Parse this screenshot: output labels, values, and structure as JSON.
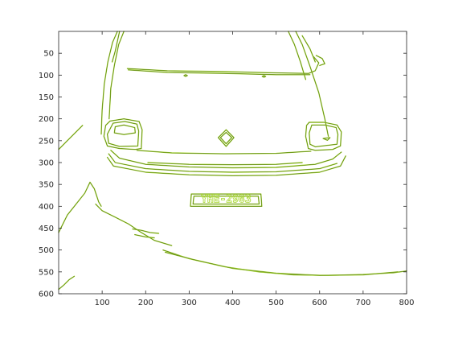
{
  "chart_data": {
    "type": "image",
    "title": "",
    "xlabel": "",
    "ylabel": "",
    "xlim": [
      0,
      800
    ],
    "ylim": [
      600,
      0
    ],
    "x_ticks": [
      100,
      200,
      300,
      400,
      500,
      600,
      700,
      800
    ],
    "y_ticks": [
      50,
      100,
      150,
      200,
      250,
      300,
      350,
      400,
      450,
      500,
      550,
      600
    ],
    "y_axis_inverted": true,
    "grid": false,
    "legend": "none",
    "image_text": "YHE-2983",
    "colors": {
      "edge": "#a6d62b",
      "edge_dark": "#4b6e1a",
      "axis": "#262626",
      "background": "#ffffff"
    },
    "edge_paths": [
      {
        "name": "hood-left",
        "points": [
          [
            135,
            0
          ],
          [
            124,
            25
          ],
          [
            113,
            70
          ],
          [
            105,
            120
          ],
          [
            100,
            180
          ],
          [
            98,
            235
          ]
        ]
      },
      {
        "name": "hood-left-inner",
        "points": [
          [
            150,
            0
          ],
          [
            138,
            30
          ],
          [
            128,
            78
          ],
          [
            120,
            130
          ],
          [
            116,
            200
          ]
        ]
      },
      {
        "name": "wiper-left",
        "points": [
          [
            140,
            0
          ],
          [
            130,
            45
          ],
          [
            123,
            70
          ]
        ]
      },
      {
        "name": "hood-right",
        "points": [
          [
            545,
            0
          ],
          [
            560,
            30
          ],
          [
            578,
            80
          ],
          [
            598,
            140
          ],
          [
            612,
            200
          ],
          [
            620,
            240
          ]
        ]
      },
      {
        "name": "hood-right-inner",
        "points": [
          [
            528,
            0
          ],
          [
            542,
            30
          ],
          [
            556,
            70
          ],
          [
            568,
            110
          ]
        ]
      },
      {
        "name": "wiper-right",
        "points": [
          [
            560,
            10
          ],
          [
            578,
            40
          ],
          [
            590,
            70
          ]
        ]
      },
      {
        "name": "windshield-base",
        "points": [
          [
            158,
            85
          ],
          [
            250,
            90
          ],
          [
            380,
            92
          ],
          [
            500,
            95
          ],
          [
            575,
            96
          ],
          [
            590,
            90
          ],
          [
            598,
            72
          ],
          [
            586,
            58
          ]
        ]
      },
      {
        "name": "windshield-base-2",
        "points": [
          [
            160,
            88
          ],
          [
            250,
            94
          ],
          [
            380,
            96
          ],
          [
            500,
            99
          ],
          [
            578,
            99
          ]
        ]
      },
      {
        "name": "mirror-right",
        "points": [
          [
            592,
            55
          ],
          [
            606,
            62
          ],
          [
            612,
            74
          ],
          [
            600,
            78
          ]
        ]
      },
      {
        "name": "left-headlight",
        "points": [
          [
            118,
            205
          ],
          [
            150,
            200
          ],
          [
            185,
            206
          ],
          [
            192,
            225
          ],
          [
            190,
            268
          ],
          [
            176,
            270
          ],
          [
            140,
            268
          ],
          [
            112,
            262
          ],
          [
            104,
            240
          ],
          [
            108,
            215
          ],
          [
            118,
            205
          ]
        ]
      },
      {
        "name": "left-headlight-inner",
        "points": [
          [
            125,
            210
          ],
          [
            152,
            206
          ],
          [
            180,
            212
          ],
          [
            184,
            228
          ],
          [
            182,
            262
          ],
          [
            140,
            263
          ],
          [
            115,
            256
          ],
          [
            112,
            235
          ],
          [
            125,
            210
          ]
        ]
      },
      {
        "name": "left-headlight-ring",
        "points": [
          [
            130,
            218
          ],
          [
            150,
            214
          ],
          [
            175,
            220
          ],
          [
            176,
            232
          ],
          [
            150,
            236
          ],
          [
            128,
            232
          ],
          [
            130,
            218
          ]
        ]
      },
      {
        "name": "right-headlight",
        "points": [
          [
            576,
            208
          ],
          [
            610,
            208
          ],
          [
            640,
            214
          ],
          [
            650,
            230
          ],
          [
            648,
            262
          ],
          [
            630,
            270
          ],
          [
            590,
            272
          ],
          [
            574,
            268
          ],
          [
            568,
            240
          ],
          [
            570,
            215
          ],
          [
            576,
            208
          ]
        ]
      },
      {
        "name": "right-headlight-inner",
        "points": [
          [
            582,
            214
          ],
          [
            612,
            214
          ],
          [
            638,
            220
          ],
          [
            642,
            236
          ],
          [
            640,
            258
          ],
          [
            590,
            264
          ],
          [
            578,
            258
          ],
          [
            576,
            232
          ],
          [
            582,
            214
          ]
        ]
      },
      {
        "name": "logo-diamond",
        "points": [
          [
            385,
            225
          ],
          [
            403,
            243
          ],
          [
            385,
            263
          ],
          [
            367,
            243
          ],
          [
            385,
            225
          ]
        ]
      },
      {
        "name": "logo-diamond-inner",
        "points": [
          [
            385,
            231
          ],
          [
            398,
            243
          ],
          [
            385,
            257
          ],
          [
            372,
            243
          ],
          [
            385,
            231
          ]
        ]
      },
      {
        "name": "bumper-top",
        "points": [
          [
            180,
            272
          ],
          [
            260,
            278
          ],
          [
            380,
            280
          ],
          [
            500,
            279
          ],
          [
            580,
            274
          ]
        ]
      },
      {
        "name": "bumper-line-1",
        "points": [
          [
            120,
            272
          ],
          [
            140,
            290
          ],
          [
            200,
            304
          ],
          [
            300,
            310
          ],
          [
            400,
            312
          ],
          [
            500,
            311
          ],
          [
            590,
            304
          ],
          [
            630,
            292
          ],
          [
            650,
            276
          ]
        ]
      },
      {
        "name": "bumper-line-2",
        "points": [
          [
            115,
            280
          ],
          [
            130,
            300
          ],
          [
            200,
            314
          ],
          [
            300,
            320
          ],
          [
            400,
            322
          ],
          [
            500,
            321
          ],
          [
            600,
            314
          ],
          [
            640,
            302
          ]
        ]
      },
      {
        "name": "bumper-line-3",
        "points": [
          [
            112,
            288
          ],
          [
            126,
            308
          ],
          [
            200,
            322
          ],
          [
            300,
            328
          ],
          [
            400,
            330
          ],
          [
            500,
            329
          ],
          [
            600,
            322
          ],
          [
            648,
            308
          ],
          [
            660,
            285
          ]
        ]
      },
      {
        "name": "grille-slot",
        "points": [
          [
            205,
            300
          ],
          [
            300,
            304
          ],
          [
            400,
            305
          ],
          [
            500,
            304
          ],
          [
            560,
            300
          ]
        ]
      },
      {
        "name": "plate-outer",
        "points": [
          [
            305,
            372
          ],
          [
            465,
            372
          ],
          [
            467,
            400
          ],
          [
            303,
            400
          ],
          [
            305,
            372
          ]
        ]
      },
      {
        "name": "plate-inner",
        "points": [
          [
            311,
            377
          ],
          [
            459,
            377
          ],
          [
            461,
            395
          ],
          [
            309,
            395
          ],
          [
            311,
            377
          ]
        ]
      },
      {
        "name": "road-left-top",
        "points": [
          [
            0,
            270
          ],
          [
            20,
            250
          ],
          [
            42,
            228
          ],
          [
            55,
            215
          ]
        ]
      },
      {
        "name": "road-left-bottom",
        "points": [
          [
            0,
            460
          ],
          [
            20,
            420
          ],
          [
            40,
            395
          ],
          [
            60,
            370
          ],
          [
            72,
            345
          ],
          [
            82,
            360
          ],
          [
            92,
            390
          ],
          [
            98,
            400
          ]
        ]
      },
      {
        "name": "road-left-lower",
        "points": [
          [
            0,
            590
          ],
          [
            12,
            580
          ],
          [
            24,
            568
          ],
          [
            36,
            560
          ]
        ]
      },
      {
        "name": "road-shadow",
        "points": [
          [
            85,
            395
          ],
          [
            100,
            410
          ],
          [
            130,
            425
          ],
          [
            160,
            440
          ],
          [
            190,
            460
          ],
          [
            220,
            478
          ],
          [
            260,
            490
          ]
        ]
      },
      {
        "name": "road-marker",
        "points": [
          [
            170,
            452
          ],
          [
            190,
            455
          ],
          [
            210,
            460
          ],
          [
            230,
            462
          ]
        ]
      },
      {
        "name": "road-marker-2",
        "points": [
          [
            175,
            465
          ],
          [
            200,
            470
          ],
          [
            220,
            472
          ]
        ]
      },
      {
        "name": "road-bottom",
        "points": [
          [
            240,
            500
          ],
          [
            300,
            520
          ],
          [
            380,
            538
          ],
          [
            460,
            550
          ],
          [
            540,
            557
          ],
          [
            620,
            558
          ],
          [
            700,
            556
          ],
          [
            770,
            552
          ],
          [
            800,
            548
          ]
        ]
      },
      {
        "name": "road-bottom-2",
        "points": [
          [
            245,
            505
          ],
          [
            310,
            522
          ],
          [
            400,
            542
          ],
          [
            500,
            553
          ],
          [
            600,
            558
          ],
          [
            700,
            557
          ],
          [
            780,
            550
          ]
        ]
      },
      {
        "name": "dot-left",
        "points": [
          [
            292,
            99
          ],
          [
            296,
            101
          ],
          [
            292,
            103
          ],
          [
            288,
            101
          ],
          [
            292,
            99
          ]
        ]
      },
      {
        "name": "dot-right",
        "points": [
          [
            472,
            101
          ],
          [
            476,
            103
          ],
          [
            472,
            105
          ],
          [
            468,
            103
          ],
          [
            472,
            101
          ]
        ]
      },
      {
        "name": "reflector-right",
        "points": [
          [
            608,
            245
          ],
          [
            624,
            243
          ],
          [
            618,
            249
          ],
          [
            608,
            245
          ]
        ]
      }
    ]
  }
}
